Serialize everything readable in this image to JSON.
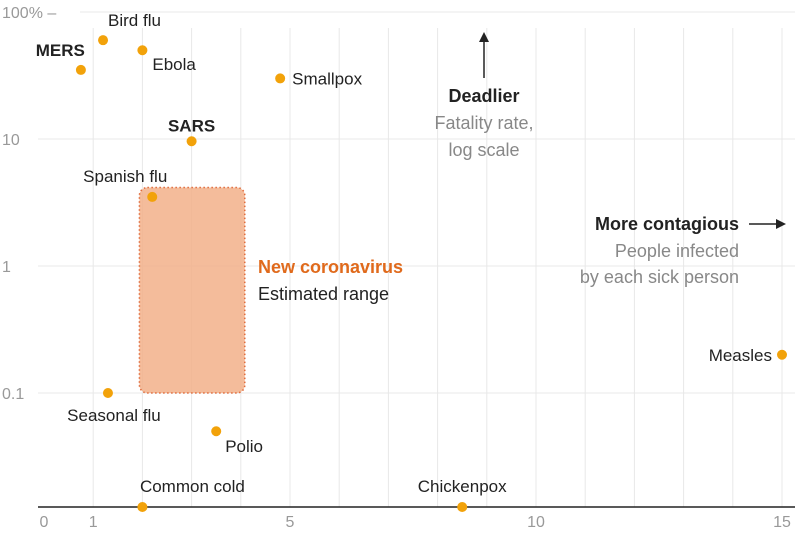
{
  "chart_data": {
    "type": "scatter",
    "x_axis": {
      "min": 0,
      "max": 15,
      "ticks": [
        "0",
        "1",
        "5",
        "10",
        "15"
      ],
      "tick_values": [
        0,
        1,
        5,
        10,
        15
      ],
      "scale": "linear"
    },
    "y_axis": {
      "scale": "log",
      "ticks": [
        "100% –",
        "10",
        "1",
        "0.1"
      ],
      "tick_values": [
        100,
        10,
        1,
        0.1
      ]
    },
    "grid": true,
    "points": [
      {
        "name": "Bird flu",
        "x": 1.2,
        "y": 60
      },
      {
        "name": "MERS",
        "x": 0.75,
        "y": 35
      },
      {
        "name": "Ebola",
        "x": 2.0,
        "y": 50
      },
      {
        "name": "Smallpox",
        "x": 4.8,
        "y": 30
      },
      {
        "name": "SARS",
        "x": 3.0,
        "y": 9.6
      },
      {
        "name": "Spanish flu",
        "x": 2.2,
        "y": 3.5
      },
      {
        "name": "Seasonal flu",
        "x": 1.3,
        "y": 0.1
      },
      {
        "name": "Polio",
        "x": 3.5,
        "y": 0.05
      },
      {
        "name": "Measles",
        "x": 15.0,
        "y": 0.2
      },
      {
        "name": "Common cold",
        "x": 2.0,
        "y": null
      },
      {
        "name": "Chickenpox",
        "x": 8.5,
        "y": null
      }
    ],
    "range": {
      "name": "New coronavirus",
      "subtitle": "Estimated range",
      "x": [
        2.0,
        4.0
      ],
      "y": [
        0.1,
        4.0
      ]
    },
    "annotations": {
      "deadlier": {
        "title": "Deadlier",
        "lines": [
          "Fatality rate,",
          "log scale"
        ]
      },
      "contagious": {
        "title": "More contagious",
        "lines": [
          "People infected",
          "by each sick person"
        ]
      }
    }
  },
  "colors": {
    "dot": "#F2A20A",
    "range_fill": "#F2B08A",
    "range_border": "#E06A3A",
    "covid_text": "#E06A1C",
    "grid": "#e8e8e8",
    "axis": "#222222"
  }
}
